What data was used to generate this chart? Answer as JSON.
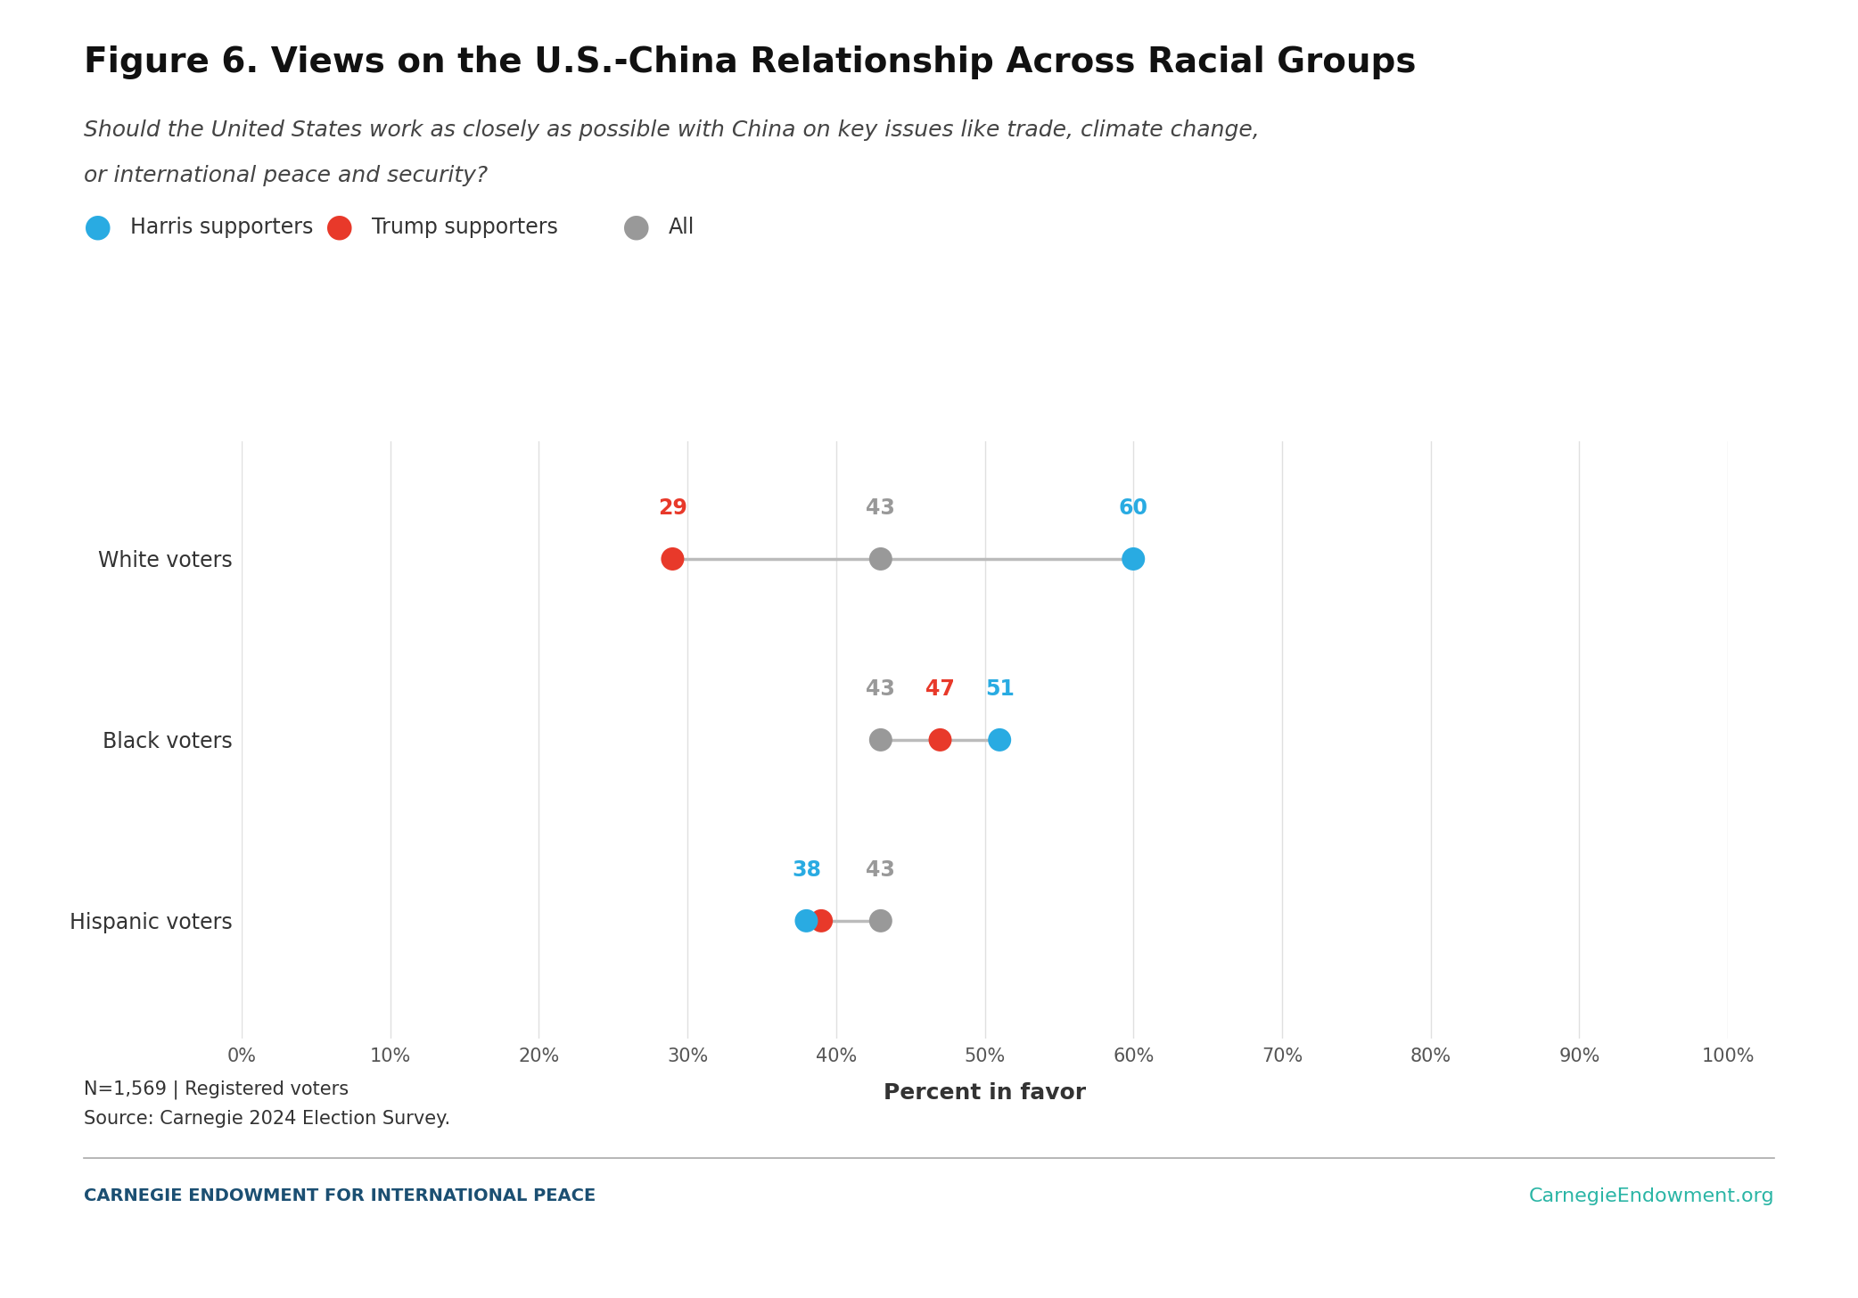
{
  "title": "Figure 6. Views on the U.S.-China Relationship Across Racial Groups",
  "subtitle_line1": "Should the United States work as closely as possible with China on key issues like trade, climate change,",
  "subtitle_line2": "or international peace and security?",
  "legend_items": [
    {
      "label": "Harris supporters",
      "color": "#29ABE2"
    },
    {
      "label": "Trump supporters",
      "color": "#E8392A"
    },
    {
      "label": "All",
      "color": "#999999"
    }
  ],
  "categories": [
    "White voters",
    "Black voters",
    "Hispanic voters"
  ],
  "data": [
    {
      "group": "White voters",
      "harris": 60,
      "trump": 29,
      "all": 43
    },
    {
      "group": "Black voters",
      "harris": 51,
      "trump": 47,
      "all": 43
    },
    {
      "group": "Hispanic voters",
      "harris": 38,
      "trump": 39,
      "all": 43
    }
  ],
  "xlim": [
    0,
    100
  ],
  "xticks": [
    0,
    10,
    20,
    30,
    40,
    50,
    60,
    70,
    80,
    90,
    100
  ],
  "xlabel": "Percent in favor",
  "harris_color": "#29ABE2",
  "trump_color": "#E8392A",
  "all_color": "#999999",
  "line_color": "#BBBBBB",
  "dot_size": 350,
  "footer_left": "CARNEGIE ENDOWMENT FOR INTERNATIONAL PEACE",
  "footer_right": "CarnegieEndowment.org",
  "footer_left_color": "#1B4F72",
  "footer_right_color": "#2ab5a5",
  "note_line1": "N=1,569 | Registered voters",
  "note_line2": "Source: Carnegie 2024 Election Survey.",
  "background_color": "#FFFFFF",
  "grid_color": "#E0E0E0"
}
